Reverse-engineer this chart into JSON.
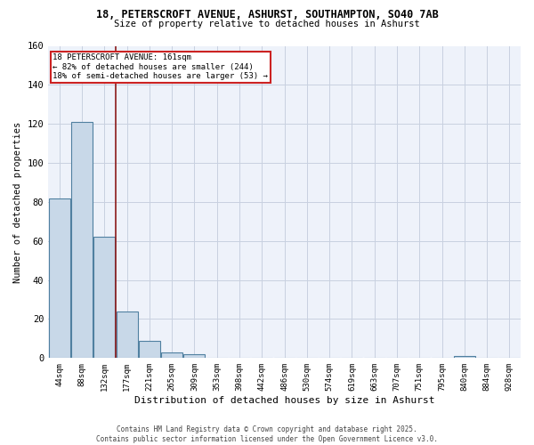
{
  "title_line1": "18, PETERSCROFT AVENUE, ASHURST, SOUTHAMPTON, SO40 7AB",
  "title_line2": "Size of property relative to detached houses in Ashurst",
  "xlabel": "Distribution of detached houses by size in Ashurst",
  "ylabel": "Number of detached properties",
  "categories": [
    "44sqm",
    "88sqm",
    "132sqm",
    "177sqm",
    "221sqm",
    "265sqm",
    "309sqm",
    "353sqm",
    "398sqm",
    "442sqm",
    "486sqm",
    "530sqm",
    "574sqm",
    "619sqm",
    "663sqm",
    "707sqm",
    "751sqm",
    "795sqm",
    "840sqm",
    "884sqm",
    "928sqm"
  ],
  "values": [
    82,
    121,
    62,
    24,
    9,
    3,
    2,
    0,
    0,
    0,
    0,
    0,
    0,
    0,
    0,
    0,
    0,
    0,
    1,
    0,
    0
  ],
  "bar_color": "#c8d8e8",
  "bar_edge_color": "#5080a0",
  "bar_edge_width": 0.8,
  "ylim": [
    0,
    160
  ],
  "yticks": [
    0,
    20,
    40,
    60,
    80,
    100,
    120,
    140,
    160
  ],
  "red_line_color": "#8b1a1a",
  "annotation_text": "18 PETERSCROFT AVENUE: 161sqm\n← 82% of detached houses are smaller (244)\n18% of semi-detached houses are larger (53) →",
  "bg_color": "#eef2fa",
  "grid_color": "#c8d0e0",
  "footer_line1": "Contains HM Land Registry data © Crown copyright and database right 2025.",
  "footer_line2": "Contains public sector information licensed under the Open Government Licence v3.0."
}
